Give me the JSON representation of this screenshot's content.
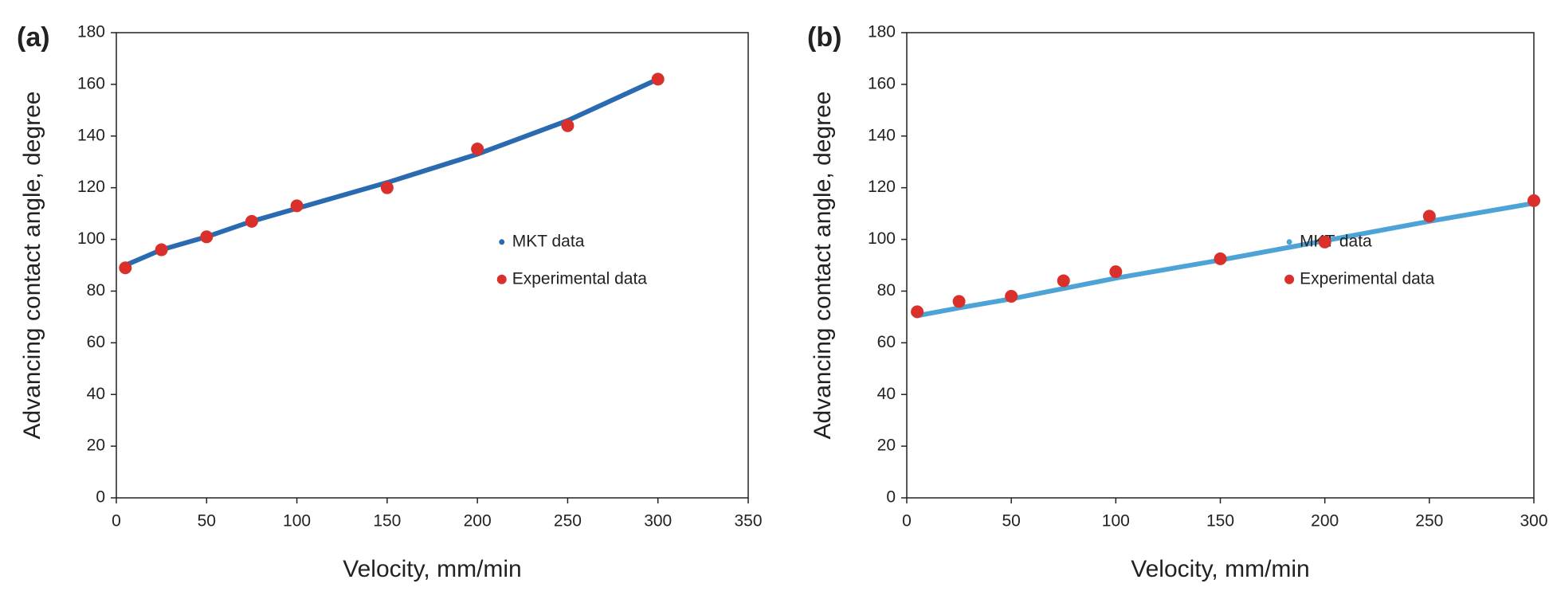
{
  "chart_data": [
    {
      "type": "line",
      "panel_label": "(a)",
      "x_label": "Velocity, mm/min",
      "y_label": "Advancing contact angle, degree",
      "x": [
        5,
        25,
        50,
        75,
        100,
        150,
        200,
        250,
        300
      ],
      "series": [
        {
          "name": "MKT data",
          "color": "#2a6ab0",
          "style": "line",
          "values": [
            90,
            96,
            101,
            107,
            112,
            122,
            133,
            146,
            162
          ]
        },
        {
          "name": "Experimental data",
          "color": "#d9302c",
          "style": "marker",
          "values": [
            89,
            96,
            101,
            107,
            113,
            120,
            135,
            144,
            162
          ]
        }
      ],
      "xlim": [
        0,
        350
      ],
      "xticks": [
        0,
        50,
        100,
        150,
        200,
        250,
        300,
        350
      ],
      "ylim": [
        0,
        180
      ],
      "yticks": [
        0,
        20,
        40,
        60,
        80,
        100,
        120,
        140,
        160,
        180
      ],
      "grid": false,
      "legend": "center-right"
    },
    {
      "type": "line",
      "panel_label": "(b)",
      "x_label": "Velocity, mm/min",
      "y_label": "Advancing contact angle, degree",
      "x": [
        5,
        25,
        50,
        75,
        100,
        150,
        200,
        250,
        300
      ],
      "series": [
        {
          "name": "MKT data",
          "color": "#4ea3d6",
          "style": "line",
          "values": [
            70.5,
            73.5,
            77,
            81,
            85,
            92,
            99.5,
            107,
            114
          ]
        },
        {
          "name": "Experimental data",
          "color": "#d9302c",
          "style": "marker",
          "values": [
            72,
            76,
            78,
            84,
            87.5,
            92.5,
            99,
            109,
            115
          ]
        }
      ],
      "xlim": [
        0,
        300
      ],
      "xticks": [
        0,
        50,
        100,
        150,
        200,
        250,
        300
      ],
      "ylim": [
        0,
        180
      ],
      "yticks": [
        0,
        20,
        40,
        60,
        80,
        100,
        120,
        140,
        160,
        180
      ],
      "grid": false,
      "legend": "center-right"
    }
  ]
}
